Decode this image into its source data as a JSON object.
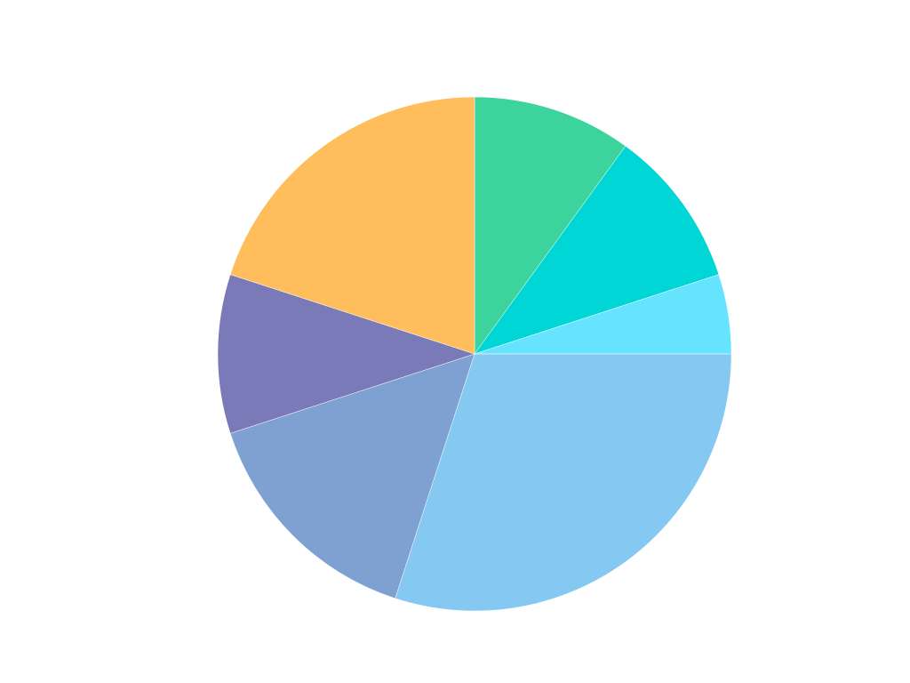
{
  "chart_data": {
    "type": "pie",
    "title": "",
    "start_angle": "12 o'clock",
    "direction": "clockwise",
    "legend": "none",
    "slices": [
      {
        "value": 10,
        "color": "#3dd39c"
      },
      {
        "value": 10,
        "color": "#00d6d6"
      },
      {
        "value": 5,
        "color": "#66e3ff"
      },
      {
        "value": 30,
        "color": "#85c8f2"
      },
      {
        "value": 15,
        "color": "#7fa1d2"
      },
      {
        "value": 10,
        "color": "#7a7ab8"
      },
      {
        "value": 20,
        "color": "#ffbe5b"
      }
    ]
  }
}
